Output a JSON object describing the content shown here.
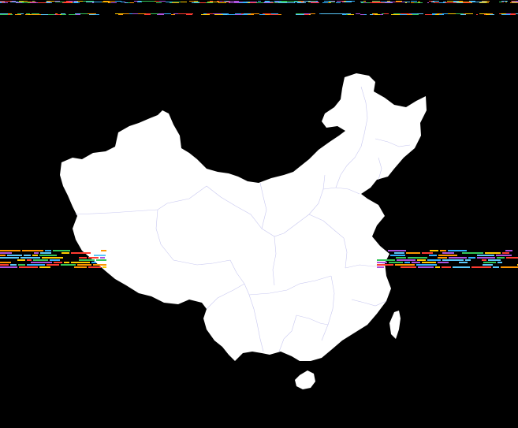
{
  "map": {
    "region": "china-provinces",
    "land_color": "#ffffff",
    "border_color": "#c8c8f0",
    "background_color": "#000000"
  },
  "artifacts": {
    "glitch_colors": [
      "#ff3b30",
      "#ffcc00",
      "#34c759",
      "#30b0ff",
      "#af52de",
      "#ff9500",
      "#5ac8fa"
    ]
  }
}
